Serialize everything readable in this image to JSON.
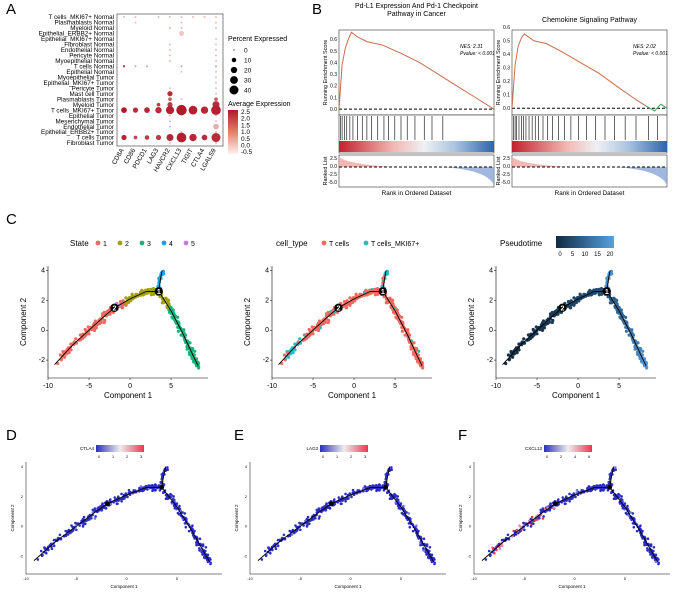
{
  "panel_letters": {
    "a": "A",
    "b": "B",
    "c": "C",
    "d": "D",
    "e": "E",
    "f": "F"
  },
  "colors": {
    "dot_dark": "#b2182b",
    "dot_light": "#f4cfc6",
    "state1": "#ef6a5e",
    "state2": "#a3a017",
    "state3": "#19b37a",
    "state4": "#1aa3e0",
    "state5": "#c77cd6",
    "tcell": "#ef6a5e",
    "mki67": "#22bcc7",
    "pseudo_dark": "#102a43",
    "pseudo_light": "#56a1e0",
    "gsea_line": "#cc6b4a",
    "gsea_tail": "#3aa35a",
    "expr_low": "#2b2dc2",
    "expr_high": "#e8384f"
  },
  "chart_data": [
    {
      "type": "scatter",
      "subtype": "dotplot",
      "panel": "A",
      "genes": [
        "CD8A",
        "CD86",
        "PDCD1",
        "LAG3",
        "HAVCR2",
        "CXCL13",
        "TIGIT",
        "CTLA4",
        "LGALS9"
      ],
      "cell_groups": [
        "T cells_MKI67+ Normal",
        "Plasmablasts Normal",
        "Myeloid Normal",
        "Epithelial_ERBB2+ Normal",
        "Epithelial_MKI67+ Normal",
        "Fibroblast Normal",
        "Endothelial Normal",
        "Pericyte Normal",
        "Myoepithelial Normal",
        "T cells Normal",
        "Epithelial Normal",
        "Myoepithelial Tumor",
        "Epithelial_MKI67+ Tumor",
        "Pericyte Tumor",
        "Mast cell Tumor",
        "Plasmablasts Tumor",
        "Myeloid Tumor",
        "T cells_MKI67+ Tumor",
        "Epithelial Tumor",
        "Mesenchymal Tumor",
        "Endothelial Tumor",
        "Epithelial_ERBB2+ Tumor",
        "T cells Tumor",
        "Fibroblast Tumor"
      ],
      "dots": [
        [
          0,
          0,
          0.3,
          0
        ],
        [
          1,
          0,
          0.5,
          0
        ],
        [
          3,
          0,
          0.3,
          0
        ],
        [
          4,
          0,
          0.5,
          0
        ],
        [
          5,
          0,
          1,
          0
        ],
        [
          6,
          0,
          0.3,
          0
        ],
        [
          7,
          0,
          0.3,
          0
        ],
        [
          8,
          0,
          0.5,
          0
        ],
        [
          1,
          1,
          0.3,
          0
        ],
        [
          5,
          1,
          0.2,
          0
        ],
        [
          8,
          1,
          0.5,
          0
        ],
        [
          4,
          2,
          1.5,
          0.2
        ],
        [
          5,
          2,
          0.3,
          0
        ],
        [
          8,
          2,
          1.5,
          0
        ],
        [
          5,
          3,
          10,
          -0.2
        ],
        [
          8,
          4,
          1,
          0
        ],
        [
          4,
          5,
          0.3,
          0
        ],
        [
          8,
          5,
          0.5,
          0
        ],
        [
          4,
          6,
          0.3,
          0
        ],
        [
          8,
          6,
          0.5,
          0
        ],
        [
          4,
          7,
          0.3,
          0
        ],
        [
          8,
          7,
          0.3,
          0
        ],
        [
          4,
          8,
          0.3,
          0
        ],
        [
          8,
          8,
          0.3,
          0
        ],
        [
          0,
          9,
          2,
          2.0
        ],
        [
          1,
          9,
          1,
          0.5
        ],
        [
          2,
          9,
          1,
          0.5
        ],
        [
          5,
          9,
          1,
          0.5
        ],
        [
          8,
          9,
          1,
          0.5
        ],
        [
          5,
          10,
          0.3,
          0
        ],
        [
          8,
          10,
          0.3,
          0
        ],
        [
          8,
          11,
          0.3,
          0
        ],
        [
          8,
          12,
          0.5,
          0
        ],
        [
          4,
          13,
          0.3,
          0
        ],
        [
          8,
          13,
          0.3,
          0
        ],
        [
          4,
          14,
          10,
          2.2
        ],
        [
          8,
          14,
          1,
          0
        ],
        [
          4,
          15,
          5,
          1.5
        ],
        [
          5,
          15,
          1,
          0
        ],
        [
          8,
          15,
          5,
          1.5
        ],
        [
          3,
          16,
          5,
          2
        ],
        [
          4,
          16,
          10,
          2
        ],
        [
          8,
          16,
          18,
          2.2
        ],
        [
          0,
          17,
          12,
          2.5
        ],
        [
          1,
          17,
          10,
          2.2
        ],
        [
          2,
          17,
          12,
          2.3
        ],
        [
          3,
          17,
          15,
          2.2
        ],
        [
          4,
          17,
          25,
          2.4
        ],
        [
          5,
          17,
          40,
          2.5
        ],
        [
          6,
          17,
          28,
          2.4
        ],
        [
          7,
          17,
          20,
          2.3
        ],
        [
          8,
          17,
          35,
          2.4
        ],
        [
          4,
          18,
          0.3,
          0
        ],
        [
          8,
          18,
          0.5,
          0
        ],
        [
          4,
          19,
          0.3,
          0
        ],
        [
          8,
          19,
          0.5,
          0
        ],
        [
          4,
          20,
          0.3,
          0
        ],
        [
          8,
          20,
          12,
          0.2
        ],
        [
          5,
          21,
          0.5,
          0
        ],
        [
          8,
          21,
          0.5,
          0
        ],
        [
          0,
          22,
          10,
          2.3
        ],
        [
          1,
          22,
          5,
          1.8
        ],
        [
          2,
          22,
          8,
          2.0
        ],
        [
          3,
          22,
          10,
          2.0
        ],
        [
          4,
          22,
          18,
          2.3
        ],
        [
          5,
          22,
          35,
          2.4
        ],
        [
          6,
          22,
          20,
          2.3
        ],
        [
          7,
          22,
          12,
          2.2
        ],
        [
          8,
          22,
          30,
          2.2
        ],
        [
          4,
          23,
          0.3,
          0
        ],
        [
          8,
          23,
          1,
          0
        ]
      ],
      "legend_size_title": "Percent Expressed",
      "legend_sizes": [
        0,
        10,
        20,
        30,
        40
      ],
      "legend_color_title": "Average Expression",
      "legend_color_ticks": [
        "2.5",
        "2.0",
        "1.5",
        "1.0",
        "0.5",
        "0.0",
        "-0.5"
      ]
    },
    {
      "type": "line",
      "subtype": "gsea",
      "panel": "B-left",
      "title": "Pd-L1 Expression And Pd-1 Checkpoint Pathway in Cancer",
      "nes_label": "NES: 2.31",
      "pvalue_label": "Pvalue: < 0.001",
      "ylabel": "Running Enrichment Score",
      "ylabel_bottom": "Ranked List",
      "xlabel": "Rank in Ordered Dataset",
      "y_ticks": [
        "0.0",
        "0.1",
        "0.2",
        "0.3",
        "0.4",
        "0.5",
        "0.6"
      ],
      "ylim": [
        -0.05,
        0.68
      ],
      "rank_ticks": [
        "2.5",
        "0.0",
        "-2.5",
        "-5.0"
      ],
      "es_points": [
        [
          0,
          0
        ],
        [
          0.02,
          0.38
        ],
        [
          0.04,
          0.52
        ],
        [
          0.06,
          0.6
        ],
        [
          0.08,
          0.66
        ],
        [
          0.12,
          0.62
        ],
        [
          0.18,
          0.58
        ],
        [
          0.28,
          0.55
        ],
        [
          0.4,
          0.48
        ],
        [
          0.52,
          0.4
        ],
        [
          0.64,
          0.3
        ],
        [
          0.76,
          0.2
        ],
        [
          0.88,
          0.1
        ],
        [
          1,
          0
        ]
      ],
      "hits": [
        0.01,
        0.02,
        0.035,
        0.05,
        0.07,
        0.09,
        0.12,
        0.15,
        0.18,
        0.21,
        0.25,
        0.29,
        0.32,
        0.36,
        0.4,
        0.44,
        0.49,
        0.55,
        0.6,
        0.67
      ]
    },
    {
      "type": "line",
      "subtype": "gsea",
      "panel": "B-right",
      "title": "Chemokine Signaling Pathway",
      "nes_label": "NES: 2.02",
      "pvalue_label": "Pvalue: < 0.001",
      "ylabel": "Running Enrichment Score",
      "ylabel_bottom": "Ranked List",
      "xlabel": "Rank in Ordered Dataset",
      "y_ticks": [
        "0.0",
        "0.1",
        "0.2",
        "0.3",
        "0.4",
        "0.5",
        "0.6"
      ],
      "ylim": [
        -0.05,
        0.58
      ],
      "rank_ticks": [
        "2.5",
        "0.0",
        "-2.5",
        "-5.0"
      ],
      "es_points": [
        [
          0,
          0
        ],
        [
          0.02,
          0.32
        ],
        [
          0.04,
          0.46
        ],
        [
          0.06,
          0.52
        ],
        [
          0.08,
          0.55
        ],
        [
          0.14,
          0.5
        ],
        [
          0.22,
          0.48
        ],
        [
          0.32,
          0.42
        ],
        [
          0.44,
          0.34
        ],
        [
          0.56,
          0.26
        ],
        [
          0.68,
          0.16
        ],
        [
          0.78,
          0.08
        ],
        [
          0.86,
          0.02
        ],
        [
          0.92,
          -0.02
        ],
        [
          0.96,
          0.03
        ],
        [
          1,
          0
        ]
      ],
      "hits": [
        0.01,
        0.02,
        0.03,
        0.045,
        0.06,
        0.075,
        0.09,
        0.11,
        0.13,
        0.15,
        0.17,
        0.2,
        0.23,
        0.26,
        0.3,
        0.34,
        0.38,
        0.43,
        0.48,
        0.54,
        0.6,
        0.66,
        0.73,
        0.8,
        0.88,
        0.94
      ]
    },
    {
      "type": "scatter",
      "subtype": "trajectory",
      "panel": "C",
      "xlabel": "Component 1",
      "ylabel": "Component 2",
      "xlim": [
        -10,
        9.5
      ],
      "ylim": [
        -3.2,
        4.3
      ],
      "x_ticks": [
        -10,
        -5,
        0,
        5
      ],
      "y_ticks": [
        -2,
        0,
        2,
        4
      ],
      "nodes": [
        {
          "label": "1",
          "x": 3.5,
          "y": 2.6
        },
        {
          "label": "2",
          "x": -1.9,
          "y": 1.5
        }
      ],
      "legend_state_title": "State",
      "states": [
        "1",
        "2",
        "3",
        "4",
        "5"
      ],
      "legend_celltype_title": "cell_type",
      "cell_types": [
        "T cells",
        "T cells_MKI67+"
      ],
      "legend_pseudo_title": "Pseudotime",
      "pseudo_ticks": [
        0,
        5,
        10,
        15,
        20
      ]
    },
    {
      "type": "scatter",
      "subtype": "trajectory-expression",
      "panel": "D-F",
      "genes": [
        "CTLA4",
        "LAG3",
        "CXCL13"
      ],
      "scale_ticks": [
        [
          "0",
          "1",
          "2",
          "3"
        ],
        [
          "0",
          "1",
          "2",
          "3"
        ],
        [
          "0",
          "2",
          "4",
          "6"
        ]
      ],
      "xlabel": "Component 1",
      "ylabel": "Component 2",
      "x_ticks": [
        "-10",
        "-5",
        "0",
        "5"
      ],
      "y_ticks": [
        "-2",
        "0",
        "2",
        "4"
      ]
    }
  ]
}
